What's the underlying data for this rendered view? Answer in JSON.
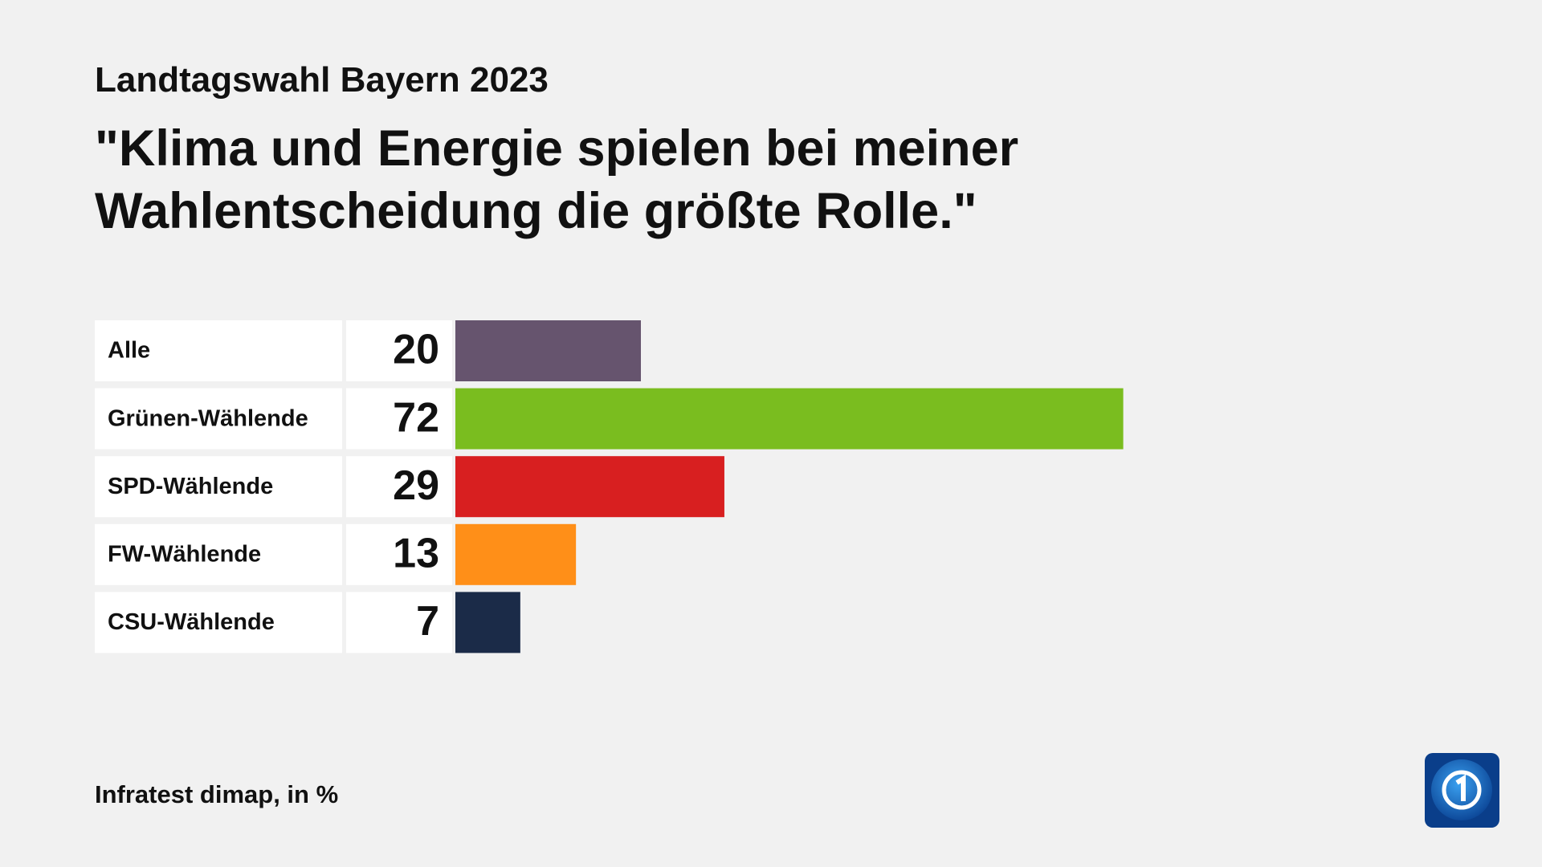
{
  "chart_data": {
    "type": "bar",
    "orientation": "horizontal",
    "subtitle": "Landtagswahl Bayern 2023",
    "title": [
      "\"Klima und Energie spielen bei meiner",
      "Wahlentscheidung die größte Rolle.\""
    ],
    "categories": [
      "Alle",
      "Grünen-Wählende",
      "SPD-Wählende",
      "FW-Wählende",
      "CSU-Wählende"
    ],
    "values": [
      20,
      72,
      29,
      13,
      7
    ],
    "colors": [
      "#66546e",
      "#7abd1f",
      "#d81f20",
      "#ff8f18",
      "#1b2b48"
    ],
    "source": "Infratest dimap, in %"
  }
}
